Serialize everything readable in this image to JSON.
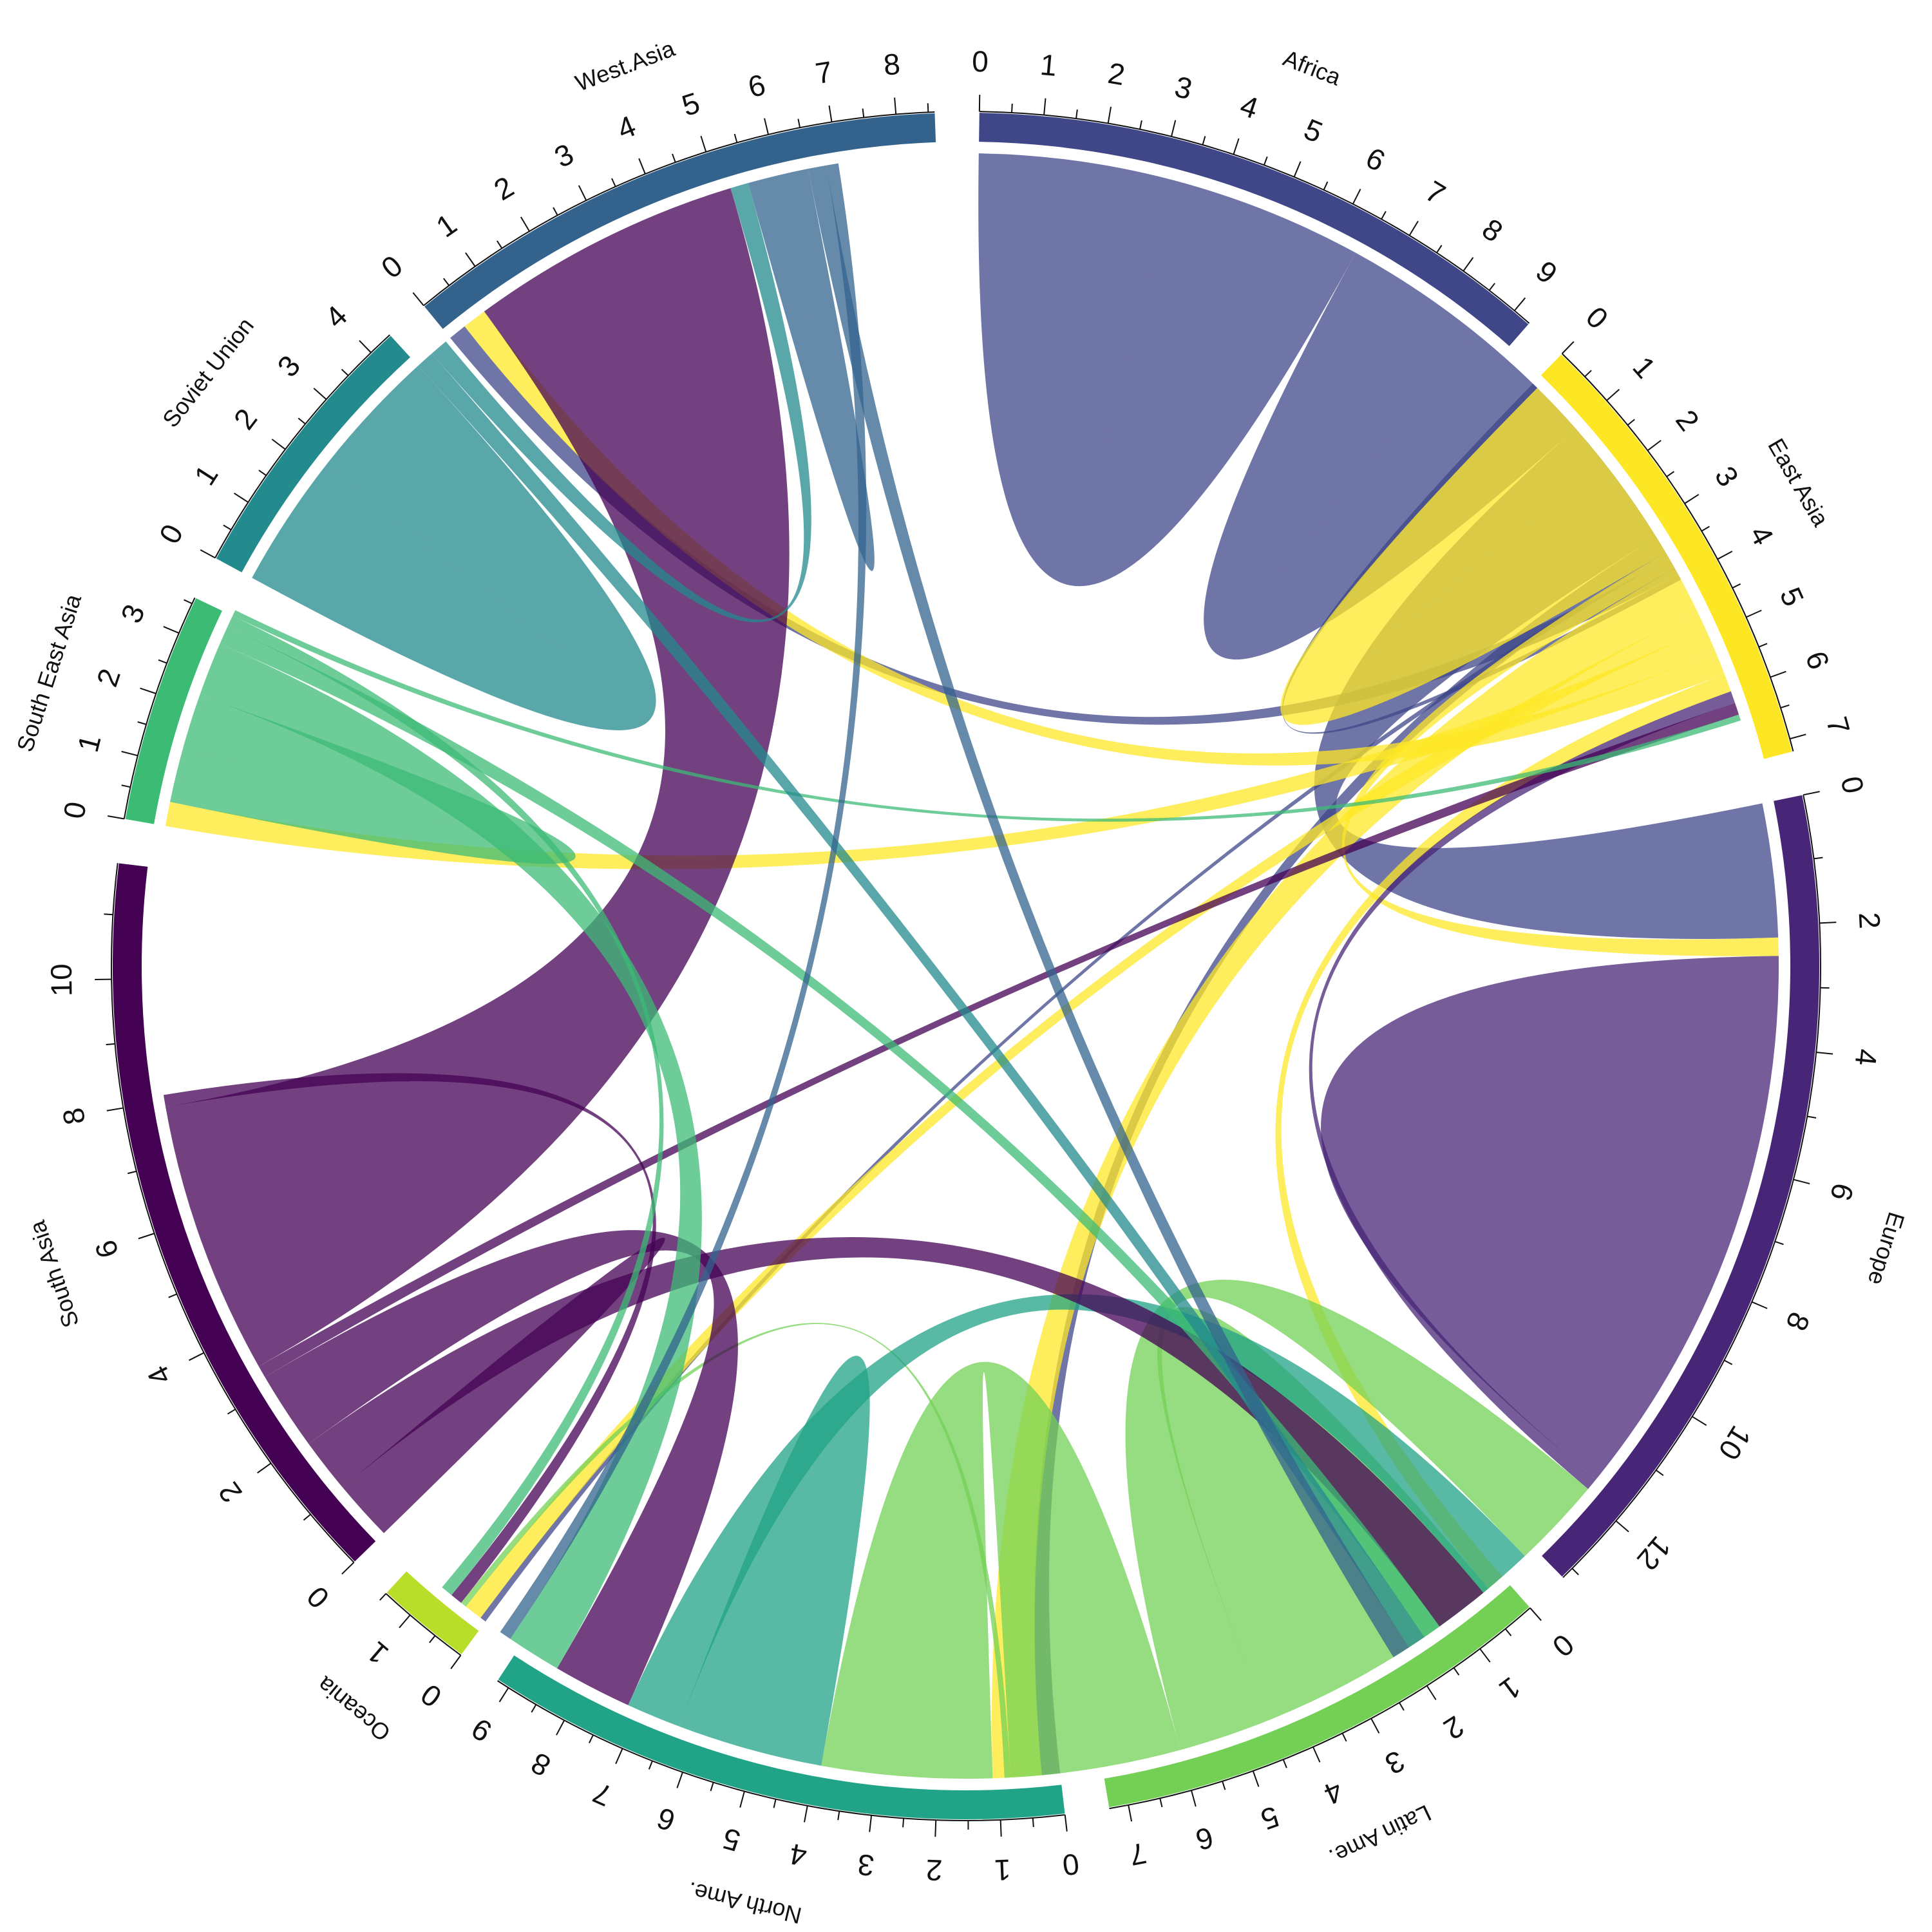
{
  "chart_data": {
    "type": "chord",
    "title": "",
    "sectors": [
      {
        "name": "Africa",
        "total": 9.3,
        "max_tick": 9,
        "tick_step": 1,
        "color": "#3F4788"
      },
      {
        "name": "East Asia",
        "total": 7.2,
        "max_tick": 7,
        "tick_step": 1,
        "color": "#FDE725"
      },
      {
        "name": "Europe",
        "total": 13.2,
        "max_tick": 12,
        "tick_step": 2,
        "color": "#482677"
      },
      {
        "name": "Latin Ame.",
        "total": 7.3,
        "max_tick": 7,
        "tick_step": 1,
        "color": "#73D055"
      },
      {
        "name": "North Ame.",
        "total": 9.2,
        "max_tick": 9,
        "tick_step": 1,
        "color": "#20A386"
      },
      {
        "name": "Oceania",
        "total": 1.5,
        "max_tick": 1,
        "tick_step": 1,
        "color": "#B8DE29"
      },
      {
        "name": "South Asia",
        "total": 11.8,
        "max_tick": 10,
        "tick_step": 2,
        "color": "#440154"
      },
      {
        "name": "South East Asia",
        "total": 3.6,
        "max_tick": 3,
        "tick_step": 1,
        "color": "#3CBB75"
      },
      {
        "name": "Soviet Union",
        "total": 4.4,
        "max_tick": 4,
        "tick_step": 1,
        "color": "#238A8D"
      },
      {
        "name": "West.Asia",
        "total": 8.6,
        "max_tick": 8,
        "tick_step": 1,
        "color": "#33638D"
      }
    ],
    "flows": [
      {
        "from": "Africa",
        "to": "Africa",
        "value": 3.2
      },
      {
        "from": "Africa",
        "to": "Africa",
        "value": 2.3
      },
      {
        "from": "Africa",
        "to": "Europe",
        "value": 2.2
      },
      {
        "from": "Africa",
        "to": "North Ame.",
        "value": 0.3
      },
      {
        "from": "Africa",
        "to": "Oceania",
        "value": 0.1
      },
      {
        "from": "Africa",
        "to": "West.Asia",
        "value": 0.3
      },
      {
        "from": "Africa",
        "to": "East Asia",
        "value": 0.1
      },
      {
        "from": "East Asia",
        "to": "East Asia",
        "value": 1.7
      },
      {
        "from": "East Asia",
        "to": "Europe",
        "value": 0.3
      },
      {
        "from": "East Asia",
        "to": "North Ame.",
        "value": 0.8
      },
      {
        "from": "East Asia",
        "to": "Oceania",
        "value": 0.3
      },
      {
        "from": "East Asia",
        "to": "South East Asia",
        "value": 0.4
      },
      {
        "from": "East Asia",
        "to": "West.Asia",
        "value": 0.4
      },
      {
        "from": "East Asia",
        "to": "Latin Ame.",
        "value": 0.3
      },
      {
        "from": "Europe",
        "to": "Europe",
        "value": 4.6
      },
      {
        "from": "Europe",
        "to": "East Asia",
        "value": 0.2
      },
      {
        "from": "Latin Ame.",
        "to": "Latin Ame.",
        "value": 2.1
      },
      {
        "from": "Latin Ame.",
        "to": "Europe",
        "value": 1.5
      },
      {
        "from": "Latin Ame.",
        "to": "North Ame.",
        "value": 2.8
      },
      {
        "from": "Latin Ame.",
        "to": "Oceania",
        "value": 0.1
      },
      {
        "from": "North Ame.",
        "to": "North Ame.",
        "value": 1.2
      },
      {
        "from": "North Ame.",
        "to": "Europe",
        "value": 0.9
      },
      {
        "from": "South Asia",
        "to": "South Asia",
        "value": 0.5
      },
      {
        "from": "South Asia",
        "to": "Europe",
        "value": 0.9
      },
      {
        "from": "South Asia",
        "to": "North Ame.",
        "value": 1.3
      },
      {
        "from": "South Asia",
        "to": "East Asia",
        "value": 0.2
      },
      {
        "from": "South Asia",
        "to": "West.Asia",
        "value": 4.5
      },
      {
        "from": "South Asia",
        "to": "Oceania",
        "value": 0.2
      },
      {
        "from": "South East Asia",
        "to": "South East Asia",
        "value": 0.9
      },
      {
        "from": "South East Asia",
        "to": "North Ame.",
        "value": 0.9
      },
      {
        "from": "South East Asia",
        "to": "Europe",
        "value": 0.3
      },
      {
        "from": "South East Asia",
        "to": "Oceania",
        "value": 0.2
      },
      {
        "from": "South East Asia",
        "to": "East Asia",
        "value": 0.1
      },
      {
        "from": "Soviet Union",
        "to": "Soviet Union",
        "value": 2.2
      },
      {
        "from": "Soviet Union",
        "to": "Europe",
        "value": 0.3
      },
      {
        "from": "Soviet Union",
        "to": "West.Asia",
        "value": 0.3
      },
      {
        "from": "West.Asia",
        "to": "West.Asia",
        "value": 0.5
      },
      {
        "from": "West.Asia",
        "to": "Europe",
        "value": 0.3
      },
      {
        "from": "West.Asia",
        "to": "North Ame.",
        "value": 0.2
      }
    ]
  }
}
